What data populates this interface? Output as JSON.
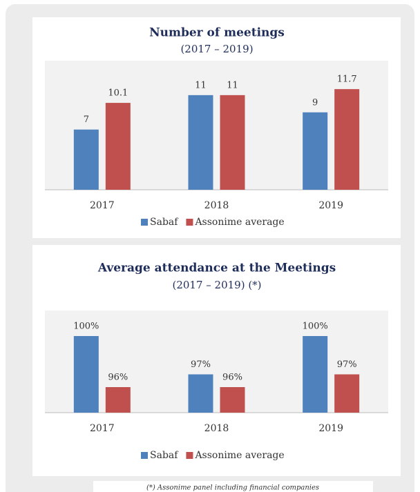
{
  "chart_data": [
    {
      "type": "bar",
      "title": "Number of meetings",
      "subtitle": "(2017 – 2019)",
      "categories": [
        "2017",
        "2018",
        "2019"
      ],
      "series": [
        {
          "name": "Sabaf",
          "color": "#4f81bd",
          "values": [
            7,
            11,
            9
          ]
        },
        {
          "name": "Assonime average",
          "color": "#c0504d",
          "values": [
            10.1,
            11,
            11.7
          ]
        }
      ],
      "ylim": [
        0,
        15
      ]
    },
    {
      "type": "bar",
      "title": "Average attendance at the Meetings",
      "subtitle": "(2017 – 2019) (*)",
      "categories": [
        "2017",
        "2018",
        "2019"
      ],
      "series": [
        {
          "name": "Sabaf",
          "color": "#4f81bd",
          "values": [
            100,
            97,
            100
          ],
          "value_labels": [
            "100%",
            "97%",
            "100%"
          ]
        },
        {
          "name": "Assonime average",
          "color": "#c0504d",
          "values": [
            96,
            96,
            97
          ],
          "value_labels": [
            "96%",
            "96%",
            "97%"
          ]
        }
      ],
      "ylim": [
        94,
        102
      ],
      "footnote": "(*) Assonime panel including financial companies"
    }
  ]
}
